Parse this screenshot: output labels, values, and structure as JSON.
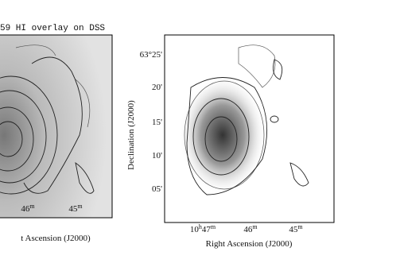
{
  "left_panel": {
    "title": "59 HI overlay on DSS",
    "xticks": [
      [
        "46",
        "m"
      ],
      [
        "45",
        "m"
      ]
    ],
    "xlabel": "t Ascension (J2000)"
  },
  "right_panel": {
    "ylabel": "Declination (J2000)",
    "yticks": [
      "63°25'",
      "20'",
      "15'",
      "10'",
      "05'"
    ],
    "xticks": [
      [
        "10",
        "h",
        "47",
        "m"
      ],
      [
        "46",
        "m"
      ],
      [
        "45",
        "m"
      ]
    ],
    "xlabel": "Right Ascension (J2000)"
  }
}
